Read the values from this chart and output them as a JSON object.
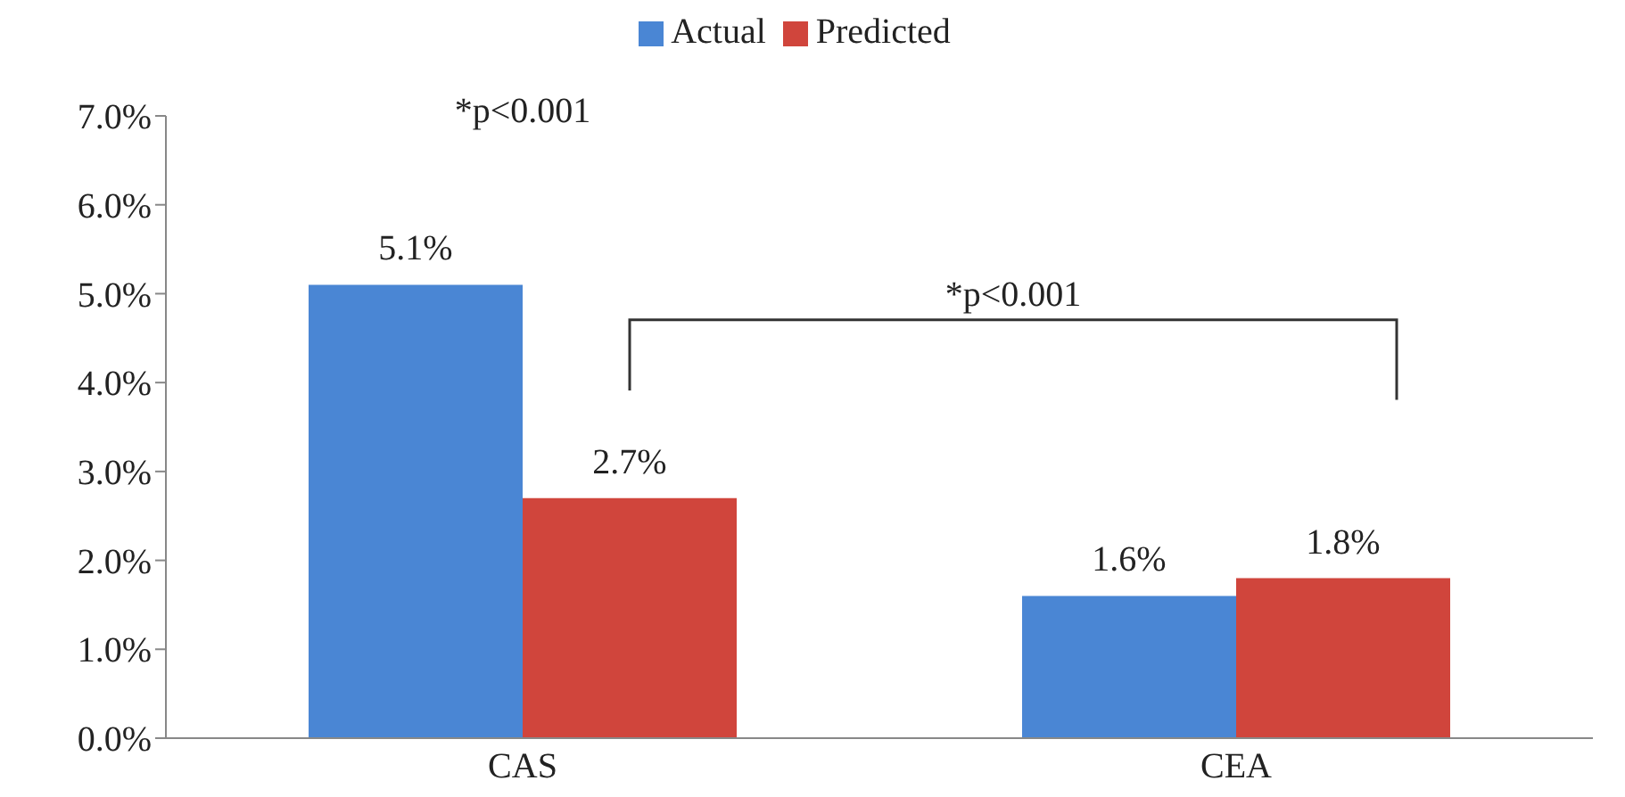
{
  "chart_data": {
    "type": "bar",
    "categories": [
      "CAS",
      "CEA"
    ],
    "series": [
      {
        "name": "Actual",
        "color": "#4a86d4",
        "values": [
          5.1,
          1.6
        ],
        "value_labels": [
          "5.1%",
          "1.6%"
        ]
      },
      {
        "name": "Predicted",
        "color": "#d0453c",
        "values": [
          2.7,
          1.8
        ],
        "value_labels": [
          "2.7%",
          "1.8%"
        ]
      }
    ],
    "ylim": [
      0,
      7
    ],
    "yticks": [
      {
        "value": 0,
        "label": "0.0%"
      },
      {
        "value": 1,
        "label": "1.0%"
      },
      {
        "value": 2,
        "label": "2.0%"
      },
      {
        "value": 3,
        "label": "3.0%"
      },
      {
        "value": 4,
        "label": "4.0%"
      },
      {
        "value": 5,
        "label": "5.0%"
      },
      {
        "value": 6,
        "label": "6.0%"
      },
      {
        "value": 7,
        "label": "7.0%"
      }
    ],
    "grid": false,
    "legend": "top",
    "annotations": [
      "*p<0.001",
      "*p<0.001"
    ]
  }
}
